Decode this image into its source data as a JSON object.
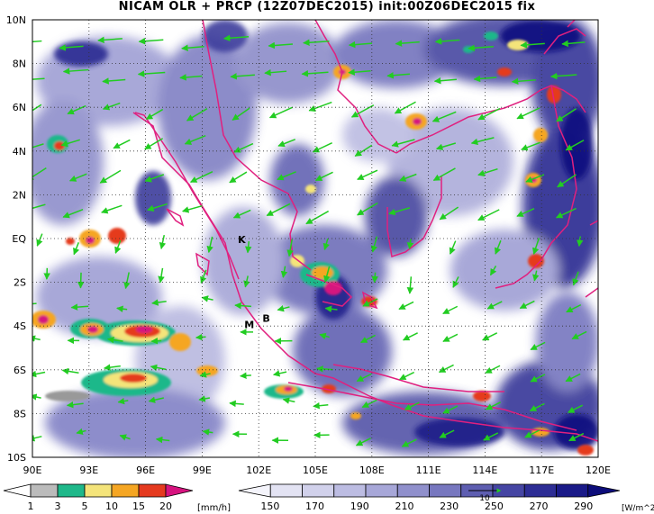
{
  "title": "NICAM OLR + PRCP (12Z07DEC2015) init:00Z06DEC2015 fix",
  "map": {
    "lat_labels": [
      "10N",
      "8N",
      "6N",
      "4N",
      "2N",
      "EQ",
      "2S",
      "4S",
      "6S",
      "8S",
      "10S"
    ],
    "lon_labels": [
      "90E",
      "93E",
      "96E",
      "99E",
      "102E",
      "105E",
      "108E",
      "111E",
      "114E",
      "117E",
      "120E"
    ],
    "lon_range": [
      90,
      120
    ],
    "lat_range": [
      -10,
      10
    ],
    "grid": "dotted",
    "coastline_color": "#e0207f",
    "wind_vector_color": "#22cc22",
    "site_labels": [
      {
        "text": "K",
        "lon": 101.1,
        "lat": -0.2
      },
      {
        "text": "M",
        "lon": 101.5,
        "lat": -4.1
      },
      {
        "text": "B",
        "lon": 102.4,
        "lat": -3.8
      }
    ]
  },
  "precip_colorbar": {
    "ticks": [
      "1",
      "3",
      "5",
      "10",
      "15",
      "20"
    ],
    "unit": "[mm/h]",
    "colors": [
      "#999999",
      "#bbbbbb",
      "#1fb88a",
      "#f4e47a",
      "#f5a623",
      "#e53a1f",
      "#d6137f"
    ]
  },
  "olr_colorbar": {
    "ticks": [
      "150",
      "170",
      "190",
      "210",
      "230",
      "250",
      "270",
      "290"
    ],
    "unit": "[W/m^2]",
    "reference_vector": "10",
    "colors": [
      "#f4f4fb",
      "#e3e3f3",
      "#d1d1eb",
      "#bcbce2",
      "#a7a7d8",
      "#9090cc",
      "#7777bf",
      "#5e5eb1",
      "#4545a3",
      "#2d2d95",
      "#1a1a88",
      "#0d0d7a"
    ]
  }
}
